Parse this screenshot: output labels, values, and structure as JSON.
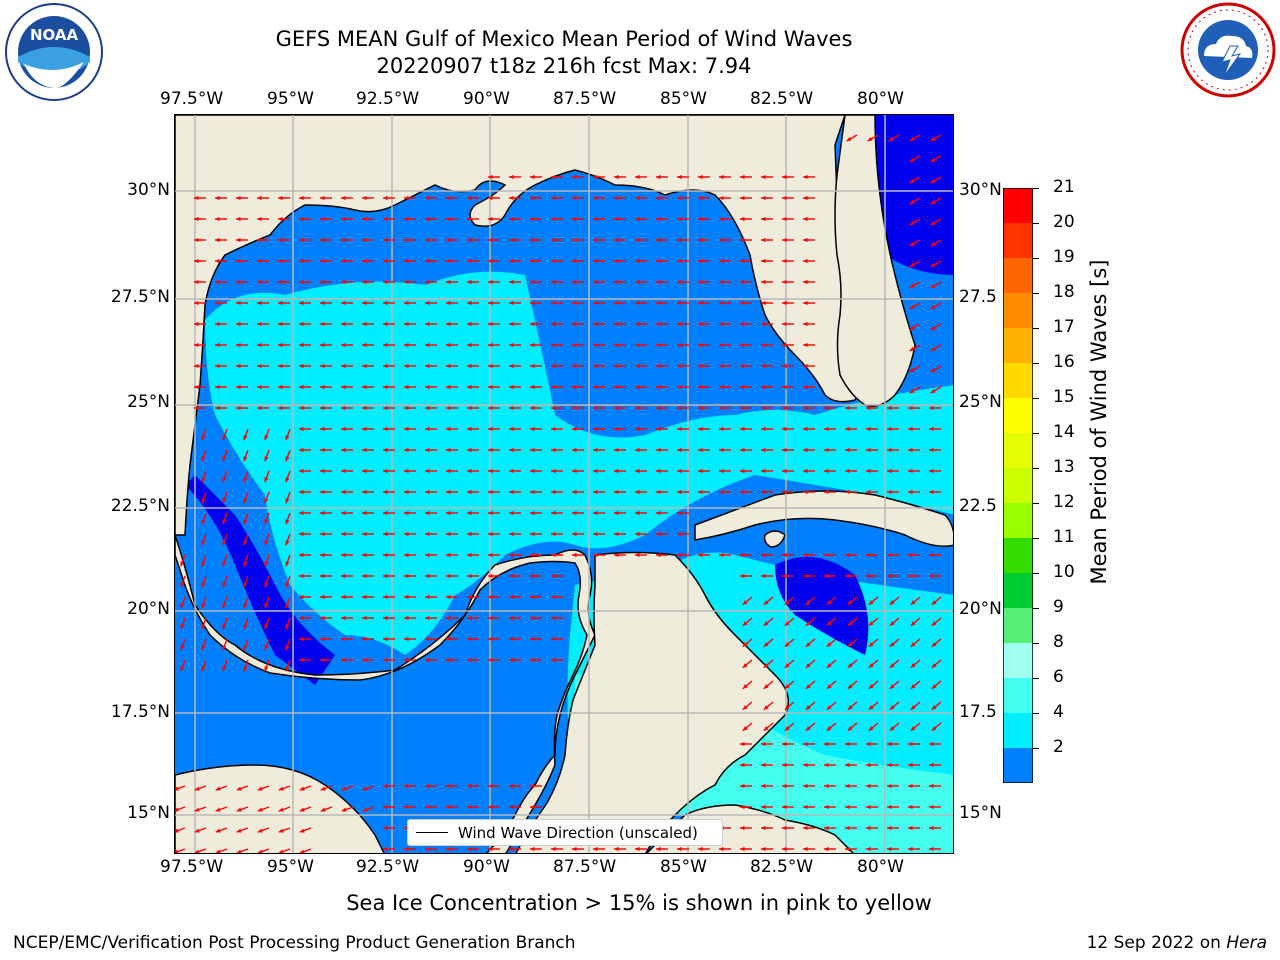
{
  "header": {
    "title_line1": "GEFS MEAN Gulf of Mexico Mean Period of Wind Waves",
    "title_line2": "20220907 t18z 216h fcst   Max: 7.94"
  },
  "logos": {
    "left": {
      "name": "noaa-logo",
      "text": "NOAA",
      "ring_text": "NATIONAL OCEANIC AND ATMOSPHERIC ADMINISTRATION · U.S. DEPARTMENT OF COMMERCE"
    },
    "right": {
      "name": "nws-logo",
      "ring_text": "NATIONAL WEATHER SERVICE"
    }
  },
  "map": {
    "lon_ticks": [
      "97.5°W",
      "95°W",
      "92.5°W",
      "90°W",
      "87.5°W",
      "85°W",
      "82.5°W",
      "80°W"
    ],
    "lat_ticks_left": [
      "30°N",
      "27.5°N",
      "25°N",
      "22.5°N",
      "20°N",
      "17.5°N",
      "15°N"
    ],
    "lat_ticks_right": [
      "30°N",
      "27.5",
      "25°N",
      "22.5",
      "20°N",
      "17.5",
      "15°N"
    ],
    "legend_label": "Wind Wave Direction (unscaled)",
    "land_color": "#efecdc",
    "arrow_color": "#ff0000"
  },
  "colorbar": {
    "label": "Mean Period of Wind Waves [s]",
    "ticks": [
      "21",
      "20",
      "19",
      "18",
      "17",
      "16",
      "15",
      "14",
      "13",
      "12",
      "11",
      "10",
      "9",
      "8",
      "6",
      "4",
      "2"
    ],
    "colors": [
      "#ff0000",
      "#ff3300",
      "#ff6600",
      "#ff8c00",
      "#ffb300",
      "#ffd900",
      "#ffff00",
      "#e6ff00",
      "#ccff00",
      "#99ff00",
      "#33dd00",
      "#00cc33",
      "#55ee77",
      "#a0ffee",
      "#44ffee",
      "#00eeff",
      "#0080ff"
    ],
    "under_color": "#0000ee"
  },
  "footer": {
    "ice_note": "Sea Ice Concentration > 15% is shown in pink to yellow",
    "left": "NCEP/EMC/Verification Post Processing Product Generation Branch",
    "right_prefix": "12 Sep 2022 on ",
    "right_host": "Hera"
  }
}
